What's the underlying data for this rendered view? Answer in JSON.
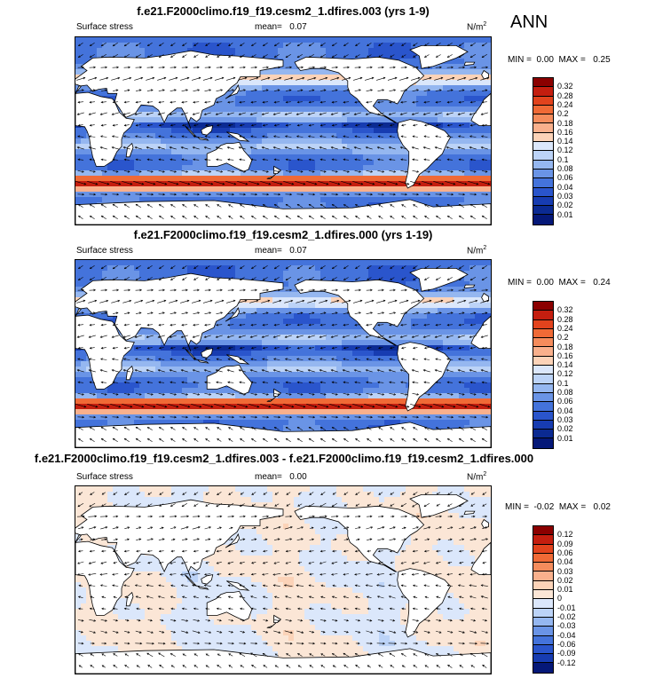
{
  "season": "ANN",
  "panels": [
    {
      "title": "f.e21.F2000climo.f19_f19.cesm2_1.dfires.003 (yrs 1-9)",
      "variable": "Surface stress",
      "mean_label": "mean=",
      "mean_value": "0.07",
      "units": "N/m",
      "units_exp": "2",
      "min_label": "MIN =",
      "min_value": "0.00",
      "max_label": "MAX =",
      "max_value": "0.25",
      "kind": "abs",
      "levels": [
        "0.32",
        "0.28",
        "0.24",
        "0.2",
        "0.18",
        "0.16",
        "0.14",
        "0.12",
        "0.1",
        "0.08",
        "0.06",
        "0.04",
        "0.03",
        "0.02",
        "0.01"
      ],
      "colors": [
        "#8b0000",
        "#c41e0f",
        "#e2431d",
        "#f06a36",
        "#f58c5c",
        "#f9b08c",
        "#fcd3b8",
        "#dbe7fb",
        "#bcd3f7",
        "#95b7f0",
        "#6a94e6",
        "#4473db",
        "#2a55cc",
        "#173cb1",
        "#0b2a92",
        "#051878"
      ]
    },
    {
      "title": "f.e21.F2000climo.f19_f19.cesm2_1.dfires.000 (yrs 1-19)",
      "variable": "Surface stress",
      "mean_label": "mean=",
      "mean_value": "0.07",
      "units": "N/m",
      "units_exp": "2",
      "min_label": "MIN =",
      "min_value": "0.00",
      "max_label": "MAX =",
      "max_value": "0.24",
      "kind": "abs",
      "levels": [
        "0.32",
        "0.28",
        "0.24",
        "0.2",
        "0.18",
        "0.16",
        "0.14",
        "0.12",
        "0.1",
        "0.08",
        "0.06",
        "0.04",
        "0.03",
        "0.02",
        "0.01"
      ],
      "colors": [
        "#8b0000",
        "#c41e0f",
        "#e2431d",
        "#f06a36",
        "#f58c5c",
        "#f9b08c",
        "#fcd3b8",
        "#dbe7fb",
        "#bcd3f7",
        "#95b7f0",
        "#6a94e6",
        "#4473db",
        "#2a55cc",
        "#173cb1",
        "#0b2a92",
        "#051878"
      ]
    },
    {
      "title": "f.e21.F2000climo.f19_f19.cesm2_1.dfires.003 - f.e21.F2000climo.f19_f19.cesm2_1.dfires.000",
      "variable": "Surface stress",
      "mean_label": "mean=",
      "mean_value": "0.00",
      "units": "N/m",
      "units_exp": "2",
      "min_label": "MIN =",
      "min_value": "-0.02",
      "max_label": "MAX =",
      "max_value": "0.02",
      "kind": "diff",
      "levels": [
        "0.12",
        "0.09",
        "0.06",
        "0.04",
        "0.03",
        "0.02",
        "0.01",
        "0",
        "-0.01",
        "-0.02",
        "-0.03",
        "-0.04",
        "-0.06",
        "-0.09",
        "-0.12"
      ],
      "colors": [
        "#8b0000",
        "#c41e0f",
        "#e2431d",
        "#f06a36",
        "#f58c5c",
        "#f9b08c",
        "#fcd3b8",
        "#fbe6d6",
        "#dbe7fb",
        "#bcd3f7",
        "#95b7f0",
        "#6a94e6",
        "#4473db",
        "#2a55cc",
        "#173cb1",
        "#051878"
      ]
    }
  ],
  "colors": {
    "land": "#ffffff",
    "coast": "#000000",
    "arrow": "#000000"
  }
}
